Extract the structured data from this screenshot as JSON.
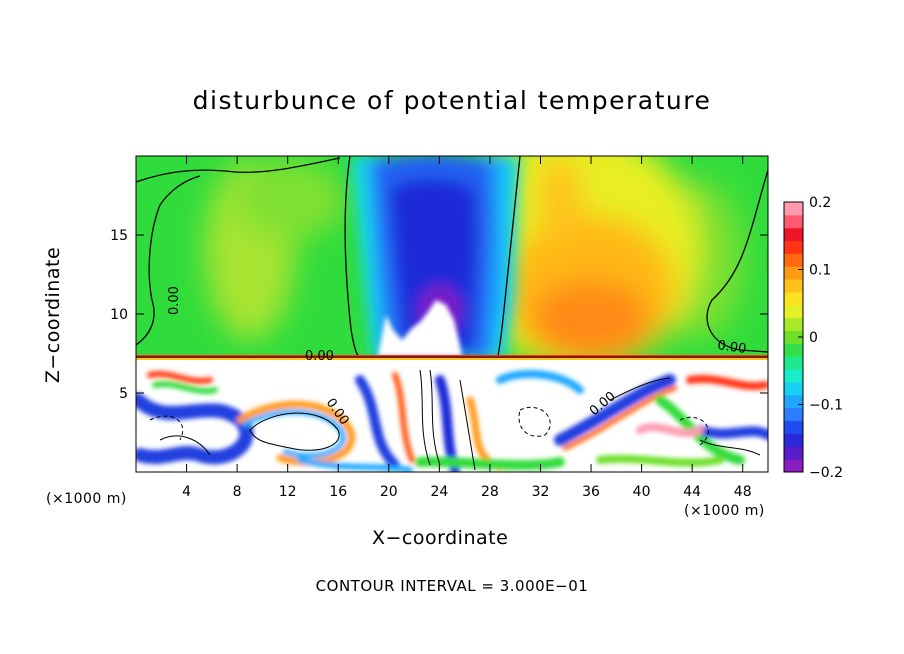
{
  "chart_data": {
    "type": "heatmap",
    "title": "disturbunce of potential temperature",
    "xlabel": "X−coordinate",
    "ylabel": "Z−coordinate",
    "x_unit": "(×1000 m)",
    "y_unit": "(×1000 m)",
    "xlim": [
      0,
      50
    ],
    "ylim": [
      0,
      20
    ],
    "x_ticks": [
      4,
      8,
      12,
      16,
      20,
      24,
      28,
      32,
      36,
      40,
      44,
      48
    ],
    "x_tick_labels": [
      "4",
      "8",
      "12",
      "16",
      "20",
      "24",
      "28",
      "32",
      "36",
      "40",
      "44",
      "48"
    ],
    "y_ticks": [
      5,
      10,
      15
    ],
    "y_tick_labels": [
      "5",
      "10",
      "15"
    ],
    "colorbar": {
      "range": [
        -0.2,
        0.2
      ],
      "ticks": [
        0.2,
        0.1,
        0,
        -0.1,
        -0.2
      ],
      "tick_labels": [
        "0.2",
        "0.1",
        "0",
        "−0.1",
        "−0.2"
      ],
      "colors": [
        "#8b1cc0",
        "#5a1cc8",
        "#2a2ad8",
        "#1f4cf0",
        "#2b7cff",
        "#1ea8ff",
        "#18d0f0",
        "#18ecc8",
        "#20e890",
        "#34e04a",
        "#6ee02a",
        "#a8e82a",
        "#e4f028",
        "#fbe21e",
        "#ffc21c",
        "#ff9a14",
        "#ff6a10",
        "#ff3414",
        "#f01428",
        "#ff5a6e",
        "#ff9ab0"
      ]
    },
    "contour_labels": [
      "0.00",
      "0.00",
      "0.00",
      "0.00",
      "0.00"
    ],
    "footer": "CONTOUR INTERVAL = 3.000E−01"
  }
}
